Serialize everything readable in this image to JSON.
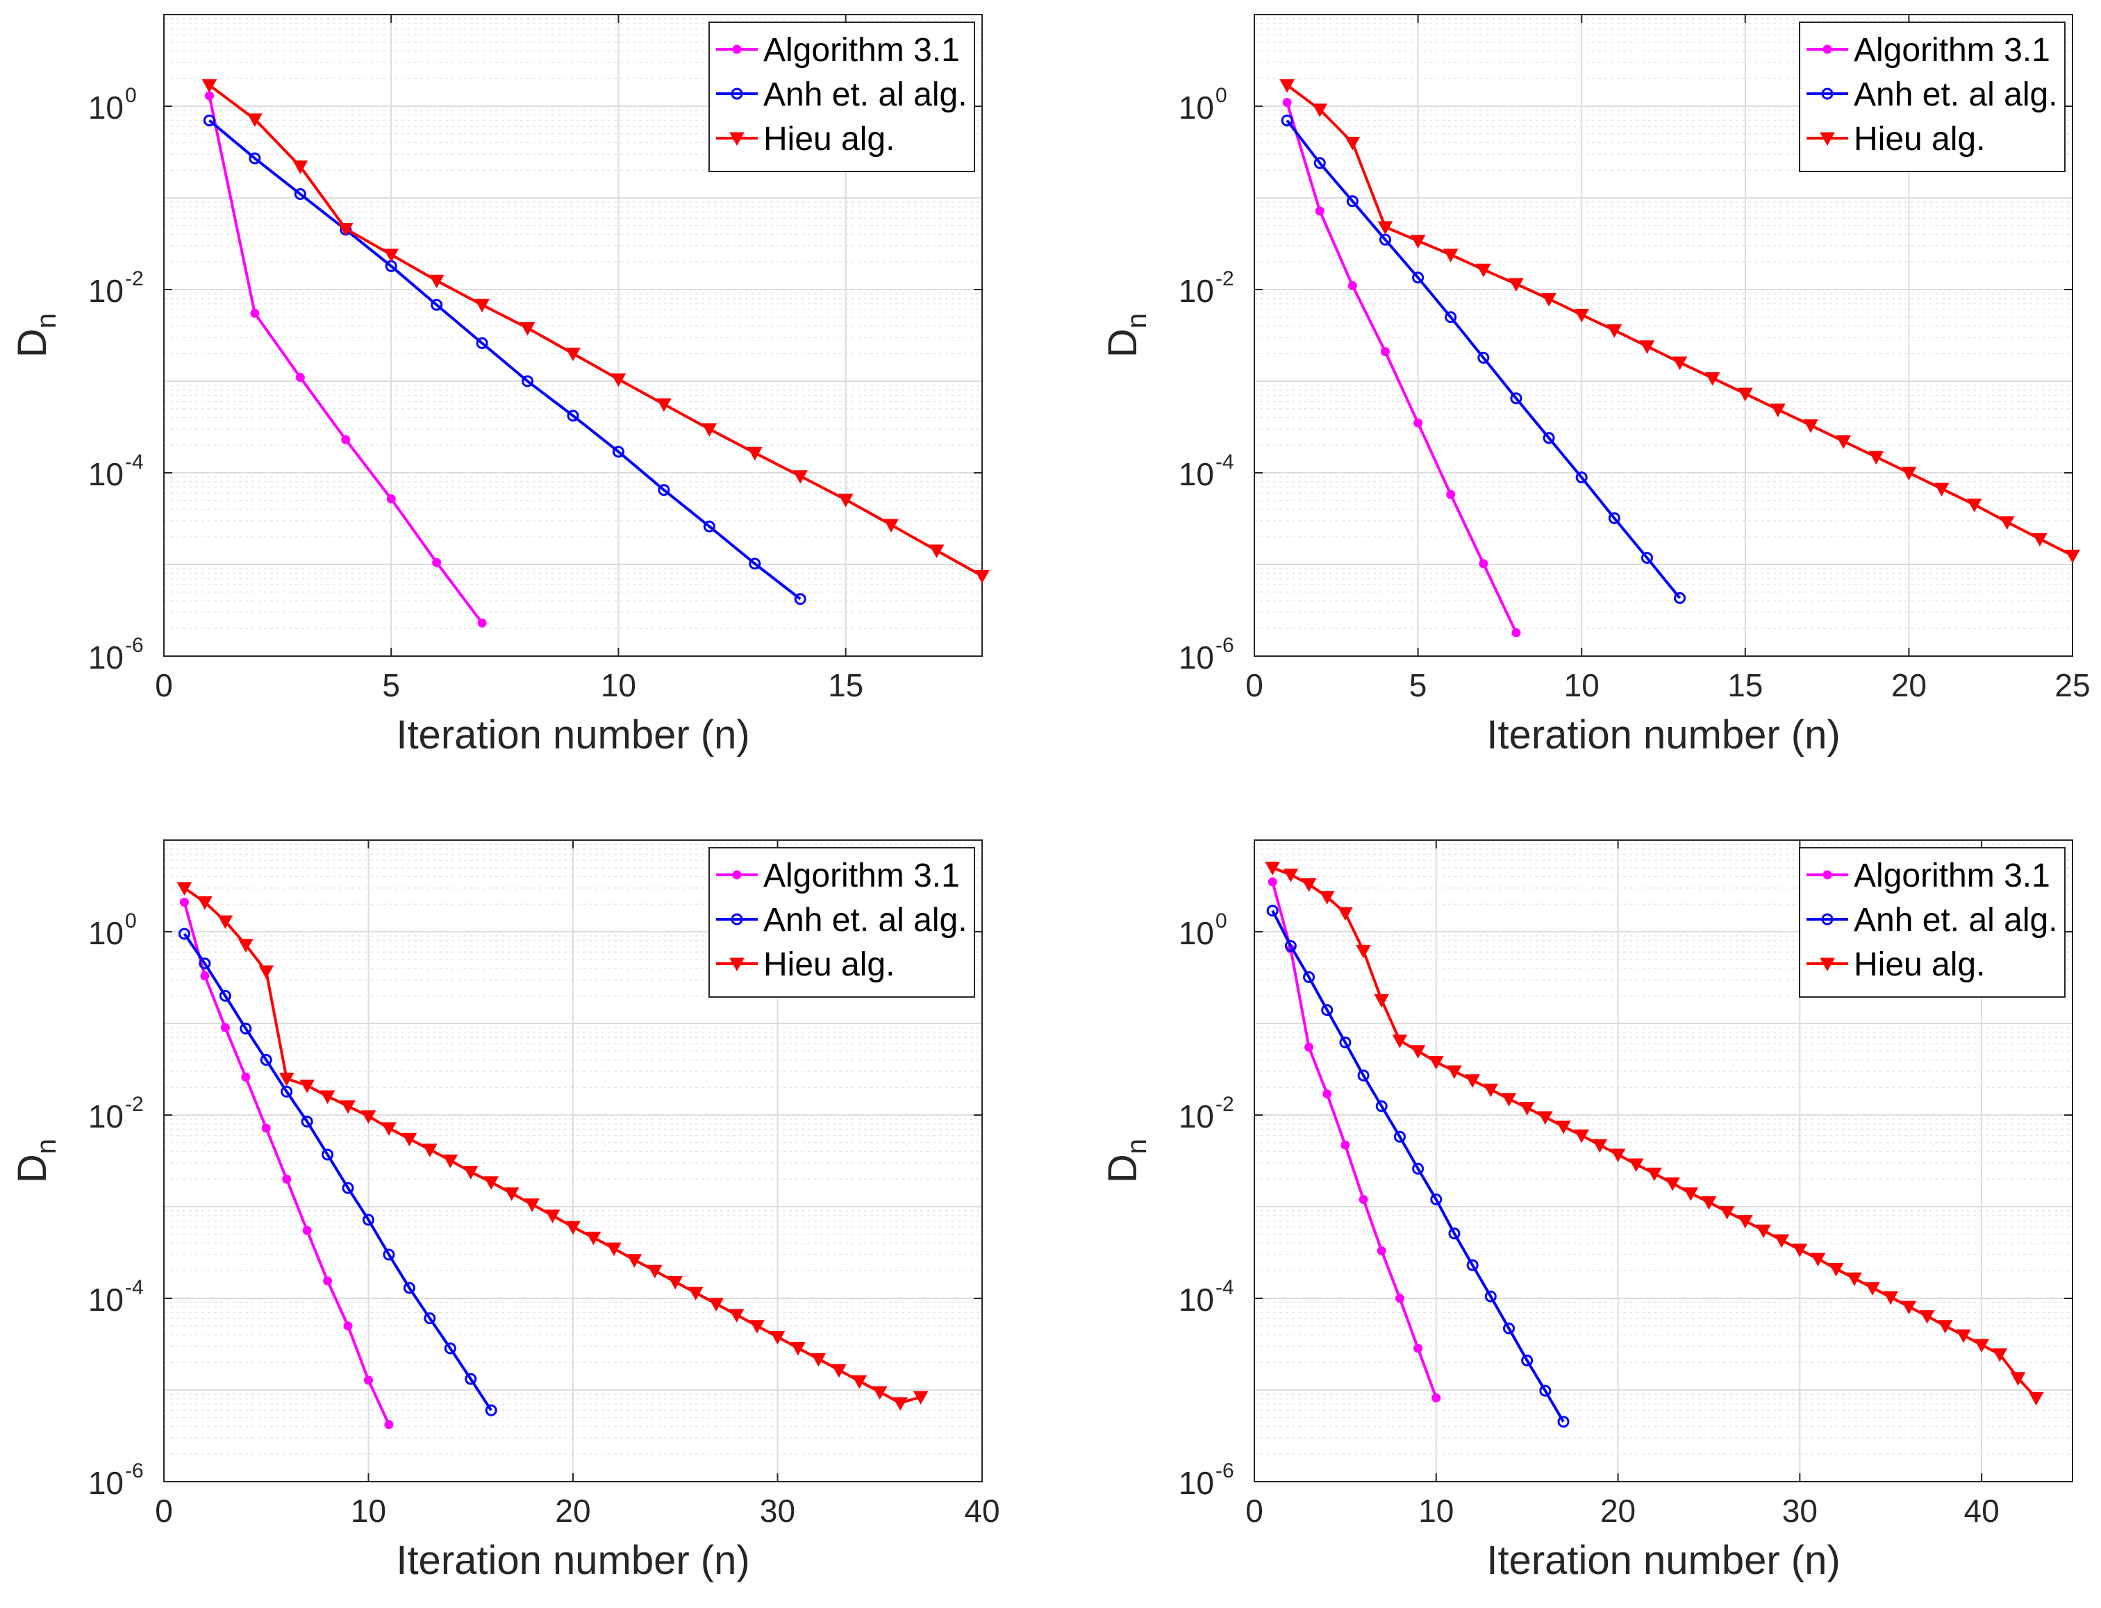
{
  "figure": {
    "layout": "2x2 grid of semilog plots"
  },
  "styles": {
    "Algorithm 3.1": {
      "color": "#ff00ff",
      "marker": "dot"
    },
    "Anh et. al alg.": {
      "color": "#0000ff",
      "marker": "circle"
    },
    "Hieu alg.": {
      "color": "#ff0000",
      "marker": "triangle-down"
    }
  },
  "chart_data": [
    {
      "type": "line",
      "yscale": "log",
      "xlabel": "Iteration number (n)",
      "ylabel": "D",
      "ylabel_sub": "n",
      "xlim": [
        0,
        18
      ],
      "xticks": [
        0,
        5,
        10,
        15
      ],
      "ylim": [
        1e-06,
        10
      ],
      "yticks": [
        {
          "base": "10",
          "exp": "-6",
          "value": 1e-06
        },
        {
          "base": "10",
          "exp": "-4",
          "value": 0.0001
        },
        {
          "base": "10",
          "exp": "-2",
          "value": 0.01
        },
        {
          "base": "10",
          "exp": "0",
          "value": 1
        }
      ],
      "grid": true,
      "legend_position": "top-right",
      "series": [
        {
          "name": "Algorithm 3.1",
          "x": [
            1,
            2,
            3,
            4,
            5,
            6,
            7
          ],
          "y": [
            1.3,
            0.0055,
            0.0011,
            0.00023,
            5.2e-05,
            1.05e-05,
            2.3e-06
          ]
        },
        {
          "name": "Anh et. al alg.",
          "x": [
            1,
            2,
            3,
            4,
            5,
            6,
            7,
            8,
            9,
            10,
            11,
            12,
            13,
            14
          ],
          "y": [
            0.7,
            0.27,
            0.11,
            0.045,
            0.018,
            0.0068,
            0.0026,
            0.001,
            0.00042,
            0.00017,
            6.5e-05,
            2.6e-05,
            1.02e-05,
            4.2e-06
          ]
        },
        {
          "name": "Hieu alg.",
          "x": [
            1,
            2,
            3,
            4,
            5,
            6,
            7,
            8,
            9,
            10,
            11,
            12,
            13,
            14,
            15,
            16,
            17,
            18
          ],
          "y": [
            1.7,
            0.72,
            0.22,
            0.046,
            0.024,
            0.0125,
            0.0068,
            0.0038,
            0.002,
            0.00105,
            0.00056,
            0.0003,
            0.000165,
            9.2e-05,
            5.1e-05,
            2.7e-05,
            1.42e-05,
            7.5e-06
          ]
        }
      ]
    },
    {
      "type": "line",
      "yscale": "log",
      "xlabel": "Iteration number (n)",
      "ylabel": "D",
      "ylabel_sub": "n",
      "xlim": [
        0,
        25
      ],
      "xticks": [
        0,
        5,
        10,
        15,
        20,
        25
      ],
      "ylim": [
        1e-06,
        10
      ],
      "yticks": [
        {
          "base": "10",
          "exp": "-6",
          "value": 1e-06
        },
        {
          "base": "10",
          "exp": "-4",
          "value": 0.0001
        },
        {
          "base": "10",
          "exp": "-2",
          "value": 0.01
        },
        {
          "base": "10",
          "exp": "0",
          "value": 1
        }
      ],
      "grid": true,
      "legend_position": "top-right",
      "series": [
        {
          "name": "Algorithm 3.1",
          "x": [
            1,
            2,
            3,
            4,
            5,
            6,
            7,
            8
          ],
          "y": [
            1.1,
            0.072,
            0.011,
            0.0021,
            0.00035,
            5.8e-05,
            1.02e-05,
            1.8e-06
          ]
        },
        {
          "name": "Anh et. al alg.",
          "x": [
            1,
            2,
            3,
            4,
            5,
            6,
            7,
            8,
            9,
            10,
            11,
            12,
            13
          ],
          "y": [
            0.7,
            0.24,
            0.092,
            0.035,
            0.0135,
            0.005,
            0.0018,
            0.00065,
            0.00024,
            8.9e-05,
            3.2e-05,
            1.18e-05,
            4.3e-06
          ]
        },
        {
          "name": "Hieu alg.",
          "x": [
            1,
            2,
            3,
            4,
            5,
            6,
            7,
            8,
            9,
            10,
            11,
            12,
            13,
            14,
            15,
            16,
            17,
            18,
            19,
            20,
            21,
            22,
            23,
            24,
            25
          ],
          "y": [
            1.7,
            0.92,
            0.4,
            0.048,
            0.034,
            0.024,
            0.0165,
            0.0115,
            0.0079,
            0.0053,
            0.0036,
            0.0024,
            0.0016,
            0.00108,
            0.00073,
            0.00049,
            0.00033,
            0.000221,
            0.000149,
            0.0001,
            6.7e-05,
            4.5e-05,
            2.9e-05,
            1.9e-05,
            1.25e-05
          ]
        }
      ]
    },
    {
      "type": "line",
      "yscale": "log",
      "xlabel": "Iteration number (n)",
      "ylabel": "D",
      "ylabel_sub": "n",
      "xlim": [
        0,
        40
      ],
      "xticks": [
        0,
        10,
        20,
        30,
        40
      ],
      "ylim": [
        1e-06,
        10
      ],
      "yticks": [
        {
          "base": "10",
          "exp": "-6",
          "value": 1e-06
        },
        {
          "base": "10",
          "exp": "-4",
          "value": 0.0001
        },
        {
          "base": "10",
          "exp": "-2",
          "value": 0.01
        },
        {
          "base": "10",
          "exp": "0",
          "value": 1
        }
      ],
      "grid": true,
      "legend_position": "top-right",
      "series": [
        {
          "name": "Algorithm 3.1",
          "x": [
            1,
            2,
            3,
            4,
            5,
            6,
            7,
            8,
            9,
            10,
            11
          ],
          "y": [
            2.1,
            0.33,
            0.09,
            0.026,
            0.0072,
            0.002,
            0.00055,
            0.000155,
            5e-05,
            1.28e-05,
            4.2e-06
          ]
        },
        {
          "name": "Anh et. al alg.",
          "x": [
            1,
            2,
            3,
            4,
            5,
            6,
            7,
            8,
            9,
            10,
            11,
            12,
            13,
            14,
            15,
            16
          ],
          "y": [
            0.95,
            0.45,
            0.2,
            0.088,
            0.04,
            0.018,
            0.0085,
            0.0037,
            0.0016,
            0.00072,
            0.0003,
            0.00013,
            6.05e-05,
            2.85e-05,
            1.32e-05,
            6e-06
          ]
        },
        {
          "name": "Hieu alg.",
          "x": [
            1,
            2,
            3,
            4,
            5,
            6,
            7,
            8,
            9,
            10,
            11,
            12,
            13,
            14,
            15,
            16,
            17,
            18,
            19,
            20,
            21,
            22,
            23,
            24,
            25,
            26,
            27,
            28,
            29,
            30,
            31,
            32,
            33,
            34,
            35,
            36,
            37
          ],
          "y": [
            3.0,
            2.1,
            1.3,
            0.72,
            0.37,
            0.025,
            0.021,
            0.016,
            0.0125,
            0.0097,
            0.0072,
            0.0055,
            0.0042,
            0.0032,
            0.0024,
            0.00185,
            0.0014,
            0.00106,
            0.0008,
            0.0006,
            0.00046,
            0.00035,
            0.000262,
            0.0002,
            0.000151,
            0.000115,
            8.7e-05,
            6.6e-05,
            5e-05,
            3.8e-05,
            2.87e-05,
            2.18e-05,
            1.65e-05,
            1.25e-05,
            9.5e-06,
            7.2e-06,
            8.4e-06
          ]
        }
      ]
    },
    {
      "type": "line",
      "yscale": "log",
      "xlabel": "Iteration number (n)",
      "ylabel": "D",
      "ylabel_sub": "n",
      "xlim": [
        0,
        45
      ],
      "xticks": [
        0,
        10,
        20,
        30,
        40
      ],
      "ylim": [
        1e-06,
        10
      ],
      "yticks": [
        {
          "base": "10",
          "exp": "-6",
          "value": 1e-06
        },
        {
          "base": "10",
          "exp": "-4",
          "value": 0.0001
        },
        {
          "base": "10",
          "exp": "-2",
          "value": 0.01
        },
        {
          "base": "10",
          "exp": "0",
          "value": 1
        }
      ],
      "grid": true,
      "legend_position": "top-right",
      "series": [
        {
          "name": "Algorithm 3.1",
          "x": [
            1,
            2,
            3,
            4,
            5,
            6,
            7,
            8,
            9,
            10
          ],
          "y": [
            3.5,
            0.65,
            0.055,
            0.017,
            0.0047,
            0.0012,
            0.00033,
            0.0001,
            2.85e-05,
            8.2e-06
          ]
        },
        {
          "name": "Anh et. al alg.",
          "x": [
            1,
            2,
            3,
            4,
            5,
            6,
            7,
            8,
            9,
            10,
            11,
            12,
            13,
            14,
            15,
            16,
            17
          ],
          "y": [
            1.7,
            0.7,
            0.32,
            0.14,
            0.062,
            0.027,
            0.0125,
            0.0058,
            0.0026,
            0.0012,
            0.00051,
            0.00023,
            0.000105,
            4.7e-05,
            2.1e-05,
            9.8e-06,
            4.5e-06
          ]
        },
        {
          "name": "Hieu alg.",
          "x": [
            1,
            2,
            3,
            4,
            5,
            6,
            7,
            8,
            9,
            10,
            11,
            12,
            13,
            14,
            15,
            16,
            17,
            18,
            19,
            20,
            21,
            22,
            23,
            24,
            25,
            26,
            27,
            28,
            29,
            30,
            31,
            32,
            33,
            34,
            35,
            36,
            37,
            38,
            39,
            40,
            41,
            42,
            43
          ],
          "y": [
            5.0,
            4.2,
            3.3,
            2.4,
            1.6,
            0.62,
            0.18,
            0.065,
            0.05,
            0.038,
            0.03,
            0.024,
            0.019,
            0.015,
            0.012,
            0.0095,
            0.0075,
            0.006,
            0.0047,
            0.0037,
            0.0029,
            0.0023,
            0.0018,
            0.0014,
            0.00112,
            0.00088,
            0.0007,
            0.00055,
            0.00043,
            0.00034,
            0.00027,
            0.00021,
            0.000165,
            0.00013,
            0.000103,
            8.1e-05,
            6.4e-05,
            5e-05,
            3.95e-05,
            3.1e-05,
            2.45e-05,
            1.35e-05,
            8.2e-06
          ]
        }
      ]
    }
  ]
}
